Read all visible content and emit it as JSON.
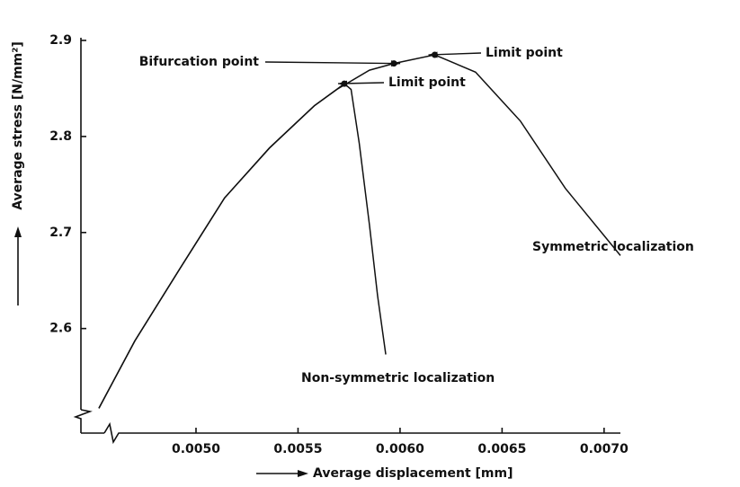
{
  "chart_data": {
    "type": "line",
    "xlabel": "Average displacement [mm]",
    "ylabel": "Average stress [N/mm²]",
    "xlim": [
      0.004436,
      0.00708
    ],
    "ylim": [
      2.493,
      2.9
    ],
    "xticks": [
      {
        "value": 0.005,
        "label": "0.0050"
      },
      {
        "value": 0.0055,
        "label": "0.0055"
      },
      {
        "value": 0.006,
        "label": "0.0060"
      },
      {
        "value": 0.0065,
        "label": "0.0065"
      },
      {
        "value": 0.007,
        "label": "0.0070"
      }
    ],
    "yticks": [
      2.6,
      2.7,
      2.8,
      2.9
    ],
    "grid": false,
    "series": [
      {
        "name": "Symmetric localization",
        "color": "#111111",
        "x": [
          0.004524,
          0.0047,
          0.00492,
          0.00514,
          0.00536,
          0.00558,
          0.00569,
          0.00585,
          0.00597,
          0.00617,
          0.00637,
          0.00659,
          0.00681,
          0.00708
        ],
        "values": [
          2.517,
          2.587,
          2.662,
          2.736,
          2.788,
          2.832,
          2.849,
          2.869,
          2.876,
          2.885,
          2.867,
          2.816,
          2.746,
          2.676
        ]
      },
      {
        "name": "Non-symmetric localization",
        "color": "#111111",
        "x": [
          0.004524,
          0.0047,
          0.00492,
          0.00514,
          0.00536,
          0.00558,
          0.00569,
          0.005727,
          0.00576,
          0.0058,
          0.00585,
          0.00589,
          0.00593
        ],
        "values": [
          2.517,
          2.587,
          2.662,
          2.736,
          2.788,
          2.832,
          2.849,
          2.855,
          2.849,
          2.793,
          2.708,
          2.634,
          2.573
        ]
      }
    ],
    "annotations": [
      {
        "text": "Bifurcation point",
        "x": 0.00597,
        "y": 2.876
      },
      {
        "text": "Limit point",
        "x": 0.00617,
        "y": 2.885
      },
      {
        "text": "Limit point",
        "x": 0.005727,
        "y": 2.855
      }
    ]
  }
}
